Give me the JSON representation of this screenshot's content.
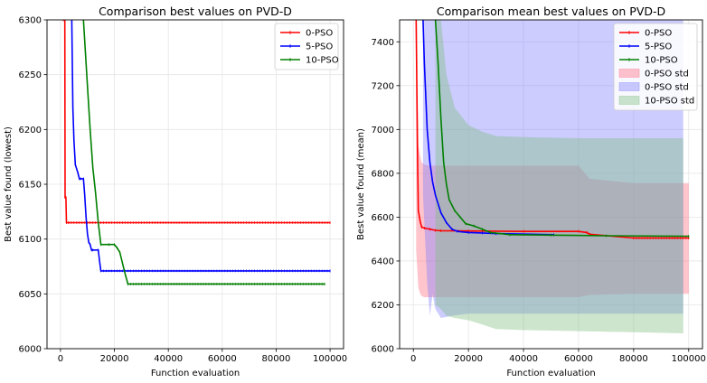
{
  "chart_data": [
    {
      "type": "line",
      "title": "Comparison best values on PVD-D",
      "xlabel": "Function evaluation",
      "ylabel": "Best value found (lowest)",
      "xlim": [
        -5000,
        105000
      ],
      "ylim": [
        6000,
        6300
      ],
      "xticks": [
        0,
        20000,
        40000,
        60000,
        80000,
        100000
      ],
      "yticks": [
        6000,
        6050,
        6100,
        6150,
        6200,
        6250,
        6300
      ],
      "grid": true,
      "legend": "top-right",
      "series": [
        {
          "name": "0-PSO",
          "color": "#ff0000",
          "x": [
            1000,
            1600,
            1700,
            2000,
            2200,
            3000,
            100000
          ],
          "y": [
            6300,
            6300,
            6138,
            6138,
            6115,
            6115,
            6115
          ]
        },
        {
          "name": "5-PSO",
          "color": "#0000ff",
          "x": [
            4200,
            4600,
            5000,
            5500,
            6500,
            7000,
            7500,
            8500,
            9000,
            9500,
            10000,
            10500,
            11000,
            11500,
            12000,
            14000,
            14500,
            15000,
            100000
          ],
          "y": [
            6300,
            6220,
            6190,
            6168,
            6160,
            6155,
            6155,
            6155,
            6140,
            6120,
            6105,
            6097,
            6095,
            6090,
            6090,
            6090,
            6080,
            6071,
            6071
          ]
        },
        {
          "name": "10-PSO",
          "color": "#008000",
          "x": [
            8500,
            10000,
            11000,
            12000,
            13000,
            14000,
            15000,
            18000,
            20000,
            21000,
            22000,
            23000,
            24000,
            25000,
            98000
          ],
          "y": [
            6300,
            6240,
            6200,
            6165,
            6142,
            6115,
            6095,
            6095,
            6095,
            6092,
            6088,
            6078,
            6068,
            6059,
            6059
          ]
        }
      ]
    },
    {
      "type": "line",
      "title": "Comparison mean best values on PVD-D",
      "xlabel": "Function evaluation",
      "ylabel": "Best value found (mean)",
      "xlim": [
        -5000,
        105000
      ],
      "ylim": [
        6000,
        7500
      ],
      "xticks": [
        0,
        20000,
        40000,
        60000,
        80000,
        100000
      ],
      "yticks": [
        6000,
        6200,
        6400,
        6600,
        6800,
        7000,
        7200,
        7400
      ],
      "grid": true,
      "legend": "top-right",
      "series": [
        {
          "name": "0-PSO",
          "color": "#ff0000",
          "x": [
            1000,
            1500,
            1800,
            2500,
            3000,
            4000,
            6000,
            8000,
            10000,
            20000,
            40000,
            60000,
            63000,
            64000,
            80000,
            100000
          ],
          "y": [
            7500,
            6900,
            6630,
            6580,
            6555,
            6550,
            6545,
            6540,
            6538,
            6537,
            6535,
            6535,
            6530,
            6522,
            6505,
            6505
          ]
        },
        {
          "name": "5-PSO",
          "color": "#0000ff",
          "x": [
            3500,
            4000,
            5000,
            6000,
            7000,
            8000,
            10000,
            12000,
            14000,
            16000,
            20000,
            25000,
            30000,
            51000
          ],
          "y": [
            7500,
            7300,
            7000,
            6850,
            6760,
            6700,
            6620,
            6575,
            6545,
            6535,
            6530,
            6528,
            6525,
            6520
          ]
        },
        {
          "name": "10-PSO",
          "color": "#008000",
          "x": [
            8000,
            9000,
            10000,
            11000,
            12000,
            13000,
            15000,
            17000,
            19000,
            22000,
            25000,
            28000,
            35000,
            50000,
            70000,
            100000
          ],
          "y": [
            7500,
            7300,
            7050,
            6850,
            6750,
            6680,
            6630,
            6600,
            6570,
            6560,
            6545,
            6530,
            6520,
            6518,
            6515,
            6513
          ]
        }
      ],
      "bands": [
        {
          "name": "0-PSO std",
          "color": "#ff6b80",
          "x": [
            1000,
            1800,
            2500,
            3000,
            4000,
            6000,
            8000,
            60000,
            64000,
            80000,
            100000
          ],
          "upper": [
            7500,
            6930,
            6880,
            6850,
            6840,
            6835,
            6835,
            6835,
            6775,
            6755,
            6755
          ],
          "lower": [
            6450,
            6280,
            6250,
            6240,
            6235,
            6235,
            6235,
            6235,
            6245,
            6250,
            6250
          ]
        },
        {
          "name": "0-PSO std",
          "color": "#8080ff",
          "x": [
            3500,
            5000,
            6000,
            7000,
            8000,
            10000,
            14000,
            20000,
            40000,
            60000,
            80000,
            98000
          ],
          "upper": [
            7500,
            7500,
            7500,
            7500,
            7500,
            7500,
            7500,
            7500,
            7500,
            7500,
            7500,
            7500
          ],
          "lower": [
            6700,
            6300,
            6150,
            6250,
            6180,
            6140,
            6150,
            6160,
            6160,
            6160,
            6160,
            6160
          ]
        },
        {
          "name": "10-PSO std",
          "color": "#7fbf7f",
          "x": [
            8000,
            10000,
            12000,
            15000,
            20000,
            25000,
            30000,
            40000,
            60000,
            80000,
            98000
          ],
          "upper": [
            7500,
            7500,
            7250,
            7100,
            7020,
            6990,
            6970,
            6965,
            6960,
            6960,
            6960
          ],
          "lower": [
            6200,
            6180,
            6150,
            6140,
            6130,
            6110,
            6090,
            6085,
            6080,
            6075,
            6070
          ]
        }
      ]
    }
  ]
}
